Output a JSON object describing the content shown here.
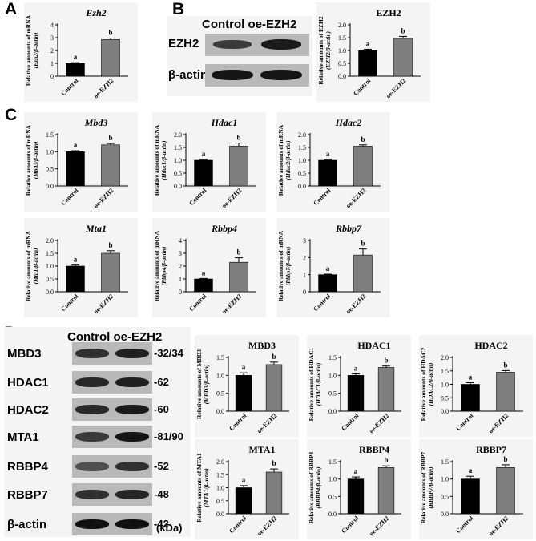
{
  "panels": {
    "A": "A",
    "B": "B",
    "C": "C",
    "D": "D"
  },
  "blot_b": {
    "header": "Control oe-EZH2",
    "rows": [
      "EZH2",
      "β-actin"
    ]
  },
  "blot_d": {
    "header": "Control oe-EZH2",
    "rows": [
      "MBD3",
      "HDAC1",
      "HDAC2",
      "MTA1",
      "RBBP4",
      "RBBP7",
      "β-actin"
    ],
    "sizes": [
      "32/34",
      "62",
      "60",
      "81/90",
      "52",
      "48",
      "42"
    ],
    "unit": "(kDa)"
  },
  "colors": {
    "control": "#000000",
    "oe": "#7f7f7f",
    "panel_bg": "#f4f4f4"
  },
  "chart_data": [
    {
      "id": "A-ezh2",
      "type": "bar",
      "title": "Ezh2",
      "title_italic": true,
      "ylabel": [
        "Relative amounts of mRNA",
        "(Ezh2/β-actin)"
      ],
      "categories": [
        "Control",
        "oe-EZH2"
      ],
      "values": [
        1.0,
        2.85
      ],
      "errors": [
        0.05,
        0.12
      ],
      "letters": [
        "a",
        "b"
      ],
      "ylim": [
        0,
        4
      ],
      "yticks": [
        0,
        1,
        2,
        3,
        4
      ]
    },
    {
      "id": "B-ezh2",
      "type": "bar",
      "title": "EZH2",
      "title_italic": false,
      "ylabel": [
        "Relative amounts of EZH2",
        "(EZH2/β-actin)"
      ],
      "categories": [
        "Control",
        "oe-EZH2"
      ],
      "values": [
        1.0,
        1.47
      ],
      "errors": [
        0.05,
        0.08
      ],
      "letters": [
        "a",
        "b"
      ],
      "ylim": [
        0,
        2.0
      ],
      "yticks": [
        0.0,
        0.5,
        1.0,
        1.5,
        2.0
      ]
    },
    {
      "id": "C-mbd3",
      "type": "bar",
      "title": "Mbd3",
      "title_italic": true,
      "ylabel": [
        "Relative amounts of mRNA",
        "(Mbd3/β-actin)"
      ],
      "categories": [
        "Control",
        "oe-EZH2"
      ],
      "values": [
        1.0,
        1.2
      ],
      "errors": [
        0.03,
        0.04
      ],
      "letters": [
        "a",
        "b"
      ],
      "ylim": [
        0,
        1.5
      ],
      "yticks": [
        0.0,
        0.5,
        1.0,
        1.5
      ]
    },
    {
      "id": "C-hdac1",
      "type": "bar",
      "title": "Hdac1",
      "title_italic": true,
      "ylabel": [
        "Relative amounts of mRNA",
        "(Hdac1/β-actin)"
      ],
      "categories": [
        "Control",
        "oe-EZH2"
      ],
      "values": [
        1.0,
        1.55
      ],
      "errors": [
        0.03,
        0.12
      ],
      "letters": [
        "a",
        "b"
      ],
      "ylim": [
        0,
        2.0
      ],
      "yticks": [
        0.0,
        0.5,
        1.0,
        1.5,
        2.0
      ]
    },
    {
      "id": "C-hdac2",
      "type": "bar",
      "title": "Hdac2",
      "title_italic": true,
      "ylabel": [
        "Relative amounts of mRNA",
        "(Hdac2/β-actin)"
      ],
      "categories": [
        "Control",
        "oe-EZH2"
      ],
      "values": [
        1.0,
        1.55
      ],
      "errors": [
        0.03,
        0.05
      ],
      "letters": [
        "a",
        "b"
      ],
      "ylim": [
        0,
        2.0
      ],
      "yticks": [
        0.0,
        0.5,
        1.0,
        1.5,
        2.0
      ]
    },
    {
      "id": "C-mta1",
      "type": "bar",
      "title": "Mta1",
      "title_italic": true,
      "ylabel": [
        "Relative amounts of mRNA",
        "(Mta1/β-actin)"
      ],
      "categories": [
        "Control",
        "oe-EZH2"
      ],
      "values": [
        1.0,
        1.5
      ],
      "errors": [
        0.04,
        0.1
      ],
      "letters": [
        "a",
        "b"
      ],
      "ylim": [
        0,
        2.0
      ],
      "yticks": [
        0.0,
        0.5,
        1.0,
        1.5,
        2.0
      ]
    },
    {
      "id": "C-rbbp4",
      "type": "bar",
      "title": "Rbbp4",
      "title_italic": true,
      "ylabel": [
        "Relative amounts of mRNA",
        "(Rbbp4/β-actin)"
      ],
      "categories": [
        "Control",
        "oe-EZH2"
      ],
      "values": [
        1.0,
        2.3
      ],
      "errors": [
        0.04,
        0.35
      ],
      "letters": [
        "a",
        "b"
      ],
      "ylim": [
        0,
        4
      ],
      "yticks": [
        0,
        1,
        2,
        3,
        4
      ]
    },
    {
      "id": "C-rbbp7",
      "type": "bar",
      "title": "Rbbp7",
      "title_italic": true,
      "ylabel": [
        "Relative amounts of mRNA",
        "(Rbbp7/β-actin)"
      ],
      "categories": [
        "Control",
        "oe-EZH2"
      ],
      "values": [
        1.0,
        2.15
      ],
      "errors": [
        0.03,
        0.35
      ],
      "letters": [
        "a",
        "b"
      ],
      "ylim": [
        0,
        3
      ],
      "yticks": [
        0,
        1,
        2,
        3
      ]
    },
    {
      "id": "D-mbd3",
      "type": "bar",
      "title": "MBD3",
      "title_italic": false,
      "ylabel": [
        "Relative amounts of MBD3",
        "(MBD3/β-actin)"
      ],
      "categories": [
        "Control",
        "oe-EZH2"
      ],
      "values": [
        1.0,
        1.3
      ],
      "errors": [
        0.07,
        0.07
      ],
      "letters": [
        "a",
        "b"
      ],
      "ylim": [
        0,
        1.5
      ],
      "yticks": [
        0.0,
        0.5,
        1.0,
        1.5
      ]
    },
    {
      "id": "D-hdac1",
      "type": "bar",
      "title": "HDAC1",
      "title_italic": false,
      "ylabel": [
        "Relative amounts of HDAC1",
        "(HDAC1/β-actin)"
      ],
      "categories": [
        "Control",
        "oe-EZH2"
      ],
      "values": [
        1.0,
        1.22
      ],
      "errors": [
        0.04,
        0.04
      ],
      "letters": [
        "a",
        "b"
      ],
      "ylim": [
        0,
        1.5
      ],
      "yticks": [
        0.0,
        0.5,
        1.0,
        1.5
      ]
    },
    {
      "id": "D-hdac2",
      "type": "bar",
      "title": "HDAC2",
      "title_italic": false,
      "ylabel": [
        "Relative amounts of HDAC2",
        "(HDAC2/β-actin)"
      ],
      "categories": [
        "Control",
        "oe-EZH2"
      ],
      "values": [
        1.0,
        1.45
      ],
      "errors": [
        0.06,
        0.06
      ],
      "letters": [
        "a",
        "b"
      ],
      "ylim": [
        0,
        2.0
      ],
      "yticks": [
        0.0,
        0.5,
        1.0,
        1.5,
        2.0
      ]
    },
    {
      "id": "D-mta1",
      "type": "bar",
      "title": "MTA1",
      "title_italic": false,
      "ylabel": [
        "Relative amounts of MTA1",
        "(MTA1/β-actin)"
      ],
      "categories": [
        "Control",
        "oe-EZH2"
      ],
      "values": [
        1.0,
        1.6
      ],
      "errors": [
        0.08,
        0.12
      ],
      "letters": [
        "a",
        "b"
      ],
      "ylim": [
        0,
        2.0
      ],
      "yticks": [
        0.0,
        0.5,
        1.0,
        1.5,
        2.0
      ]
    },
    {
      "id": "D-rbbp4",
      "type": "bar",
      "title": "RBBP4",
      "title_italic": false,
      "ylabel": [
        "Relative amounts of RBBP4",
        "(RBBP4/β-actin)"
      ],
      "categories": [
        "Control",
        "oe-EZH2"
      ],
      "values": [
        1.0,
        1.33
      ],
      "errors": [
        0.06,
        0.05
      ],
      "letters": [
        "a",
        "b"
      ],
      "ylim": [
        0,
        1.5
      ],
      "yticks": [
        0.0,
        0.5,
        1.0,
        1.5
      ]
    },
    {
      "id": "D-rbbp7",
      "type": "bar",
      "title": "RBBP7",
      "title_italic": false,
      "ylabel": [
        "Relative amounts of RBBP7",
        "(RBBP7/β-actin)"
      ],
      "categories": [
        "Control",
        "oe-EZH2"
      ],
      "values": [
        1.0,
        1.33
      ],
      "errors": [
        0.08,
        0.08
      ],
      "letters": [
        "a",
        "b"
      ],
      "ylim": [
        0,
        1.5
      ],
      "yticks": [
        0.0,
        0.5,
        1.0,
        1.5
      ]
    }
  ]
}
